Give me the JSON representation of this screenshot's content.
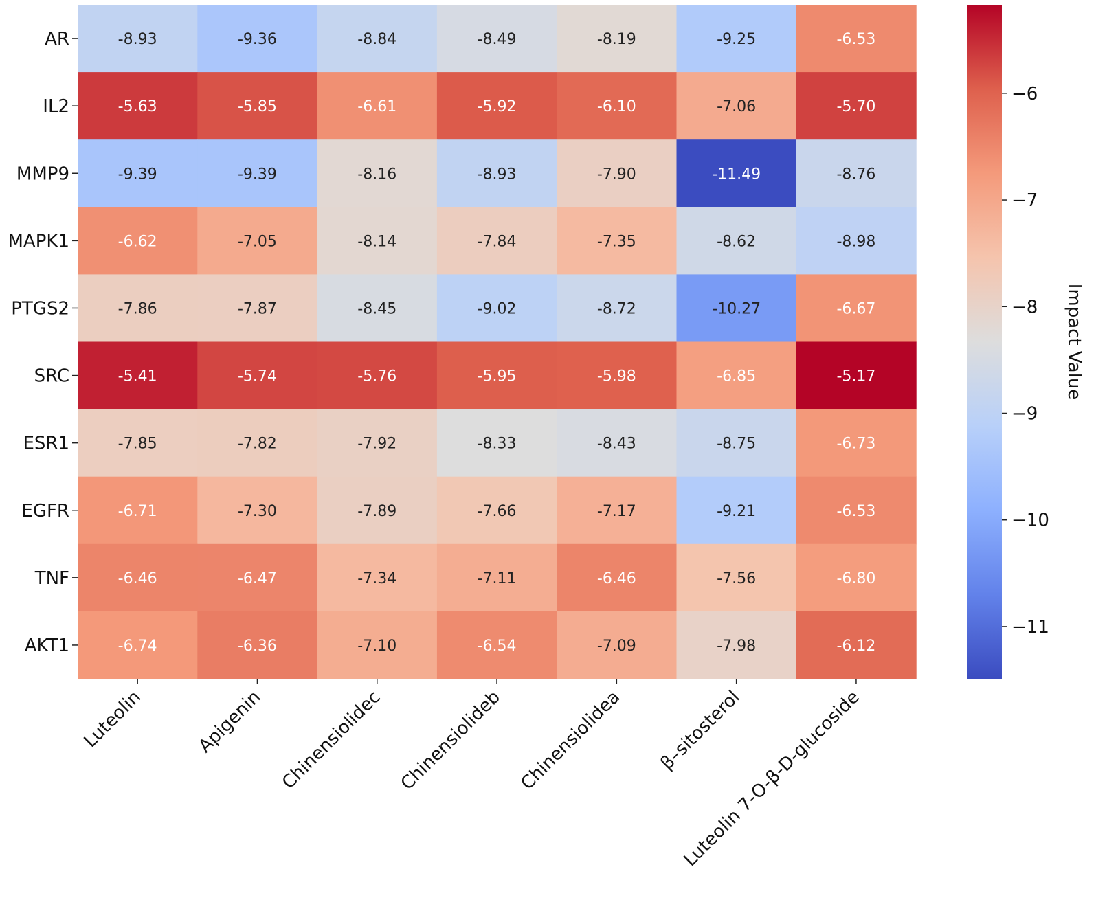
{
  "chart_data": {
    "type": "heatmap",
    "title": "",
    "xlabel": "",
    "ylabel": "",
    "rows": [
      "AR",
      "IL2",
      "MMP9",
      "MAPK1",
      "PTGS2",
      "SRC",
      "ESR1",
      "EGFR",
      "TNF",
      "AKT1"
    ],
    "columns": [
      "Luteolin",
      "Apigenin",
      "Chinensiolidec",
      "Chinensiolideb",
      "Chinensiolidea",
      "β–sitosterol",
      "Luteolin 7-O-β-D-glucoside"
    ],
    "values": [
      [
        -8.93,
        -9.36,
        -8.84,
        -8.49,
        -8.19,
        -9.25,
        -6.53
      ],
      [
        -5.63,
        -5.85,
        -6.61,
        -5.92,
        -6.1,
        -7.06,
        -5.7
      ],
      [
        -9.39,
        -9.39,
        -8.16,
        -8.93,
        -7.9,
        -11.49,
        -8.76
      ],
      [
        -6.62,
        -7.05,
        -8.14,
        -7.84,
        -7.35,
        -8.62,
        -8.98
      ],
      [
        -7.86,
        -7.87,
        -8.45,
        -9.02,
        -8.72,
        -10.27,
        -6.67
      ],
      [
        -5.41,
        -5.74,
        -5.76,
        -5.95,
        -5.98,
        -6.85,
        -5.17
      ],
      [
        -7.85,
        -7.82,
        -7.92,
        -8.33,
        -8.43,
        -8.75,
        -6.73
      ],
      [
        -6.71,
        -7.3,
        -7.89,
        -7.66,
        -7.17,
        -9.21,
        -6.53
      ],
      [
        -6.46,
        -6.47,
        -7.34,
        -7.11,
        -6.46,
        -7.56,
        -6.8
      ],
      [
        -6.74,
        -6.36,
        -7.1,
        -6.54,
        -7.09,
        -7.98,
        -6.12
      ]
    ],
    "cell_labels": [
      [
        "-8.93",
        "-9.36",
        "-8.84",
        "-8.49",
        "-8.19",
        "-9.25",
        "-6.53"
      ],
      [
        "-5.63",
        "-5.85",
        "-6.61",
        "-5.92",
        "-6.10",
        "-7.06",
        "-5.70"
      ],
      [
        "-9.39",
        "-9.39",
        "-8.16",
        "-8.93",
        "-7.90",
        "-11.49",
        "-8.76"
      ],
      [
        "-6.62",
        "-7.05",
        "-8.14",
        "-7.84",
        "-7.35",
        "-8.62",
        "-8.98"
      ],
      [
        "-7.86",
        "-7.87",
        "-8.45",
        "-9.02",
        "-8.72",
        "-10.27",
        "-6.67"
      ],
      [
        "-5.41",
        "-5.74",
        "-5.76",
        "-5.95",
        "-5.98",
        "-6.85",
        "-5.17"
      ],
      [
        "-7.85",
        "-7.82",
        "-7.92",
        "-8.33",
        "-8.43",
        "-8.75",
        "-6.73"
      ],
      [
        "-6.71",
        "-7.30",
        "-7.89",
        "-7.66",
        "-7.17",
        "-9.21",
        "-6.53"
      ],
      [
        "-6.46",
        "-6.47",
        "-7.34",
        "-7.11",
        "-6.46",
        "-7.56",
        "-6.80"
      ],
      [
        "-6.74",
        "-6.36",
        "-7.10",
        "-6.54",
        "-7.09",
        "-7.98",
        "-6.12"
      ]
    ],
    "colormap": "coolwarm",
    "vmin": -11.49,
    "vmax": -5.17,
    "colorbar": {
      "label": "Impact Value",
      "ticks": [
        -6,
        -7,
        -8,
        -9,
        -10,
        -11
      ],
      "tick_labels": [
        "−6",
        "−7",
        "−8",
        "−9",
        "−10",
        "−11"
      ]
    },
    "colors": {
      "cool_end": "#3b4cc0",
      "neutral": "#dddddd",
      "warm_end": "#b40426",
      "label_dark": "#222222",
      "label_light": "#ffffff"
    }
  }
}
